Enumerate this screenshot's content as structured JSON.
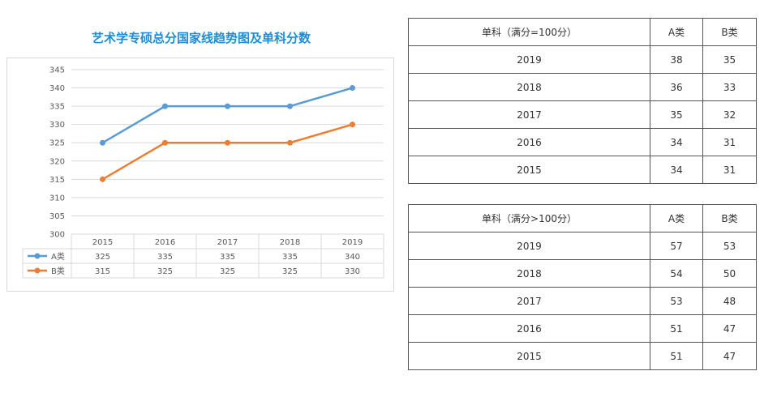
{
  "chart_data": {
    "type": "line",
    "title": "艺术学专硕总分国家线趋势图及单科分数",
    "categories": [
      "2015",
      "2016",
      "2017",
      "2018",
      "2019"
    ],
    "series": [
      {
        "name": "A类",
        "values": [
          325,
          335,
          335,
          335,
          340
        ],
        "color": "#5b9bd5"
      },
      {
        "name": "B类",
        "values": [
          315,
          325,
          325,
          325,
          330
        ],
        "color": "#ed7d31"
      }
    ],
    "yticks": [
      "300",
      "305",
      "310",
      "315",
      "320",
      "325",
      "330",
      "335",
      "340",
      "345"
    ],
    "ylim": [
      300,
      345
    ],
    "grid": true,
    "legend": "data-table"
  },
  "tables": [
    {
      "header": [
        "单科（满分=100分）",
        "A类",
        "B类"
      ],
      "rows": [
        [
          "2019",
          "38",
          "35"
        ],
        [
          "2018",
          "36",
          "33"
        ],
        [
          "2017",
          "35",
          "32"
        ],
        [
          "2016",
          "34",
          "31"
        ],
        [
          "2015",
          "34",
          "31"
        ]
      ]
    },
    {
      "header": [
        "单科（满分>100分）",
        "A类",
        "B类"
      ],
      "rows": [
        [
          "2019",
          "57",
          "53"
        ],
        [
          "2018",
          "54",
          "50"
        ],
        [
          "2017",
          "53",
          "48"
        ],
        [
          "2016",
          "51",
          "47"
        ],
        [
          "2015",
          "51",
          "47"
        ]
      ]
    }
  ],
  "colors": {
    "title": "#1f8dd6",
    "grid": "#d9d9d9",
    "table_border": "#555555"
  }
}
